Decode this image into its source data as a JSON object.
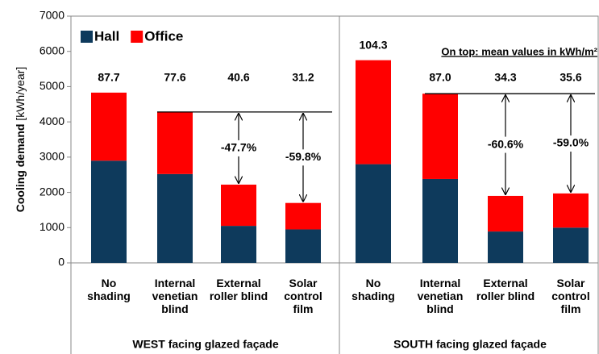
{
  "chart_data": {
    "type": "stacked_bar",
    "ylabel": "Cooling demand",
    "ylabel_unit": "[kWh/year]",
    "categories": [
      "No\nshading",
      "Internal\nvenetian\nblind",
      "External\nroller blind",
      "Solar\ncontrol\nfilm",
      "No\nshading",
      "Internal\nvenetian\nblind",
      "External\nroller blind",
      "Solar\ncontrol\nfilm"
    ],
    "groups": [
      "WEST facing glazed façade",
      "SOUTH facing glazed façade"
    ],
    "series": [
      {
        "name": "Hall",
        "color": "#0e3a5c",
        "values": [
          2900,
          2520,
          1050,
          950,
          2800,
          2380,
          890,
          1000
        ]
      },
      {
        "name": "Office",
        "color": "#ff0000",
        "values": [
          1930,
          1760,
          1170,
          750,
          2950,
          2420,
          1010,
          970
        ]
      }
    ],
    "annotations": {
      "note": "On top: mean values in kWh/m²",
      "mean_values": [
        "87.7",
        "77.6",
        "40.6",
        "31.2",
        "104.3",
        "87.0",
        "34.3",
        "35.6"
      ],
      "reductions": [
        null,
        null,
        "-47.7%",
        "-59.8%",
        null,
        null,
        "-60.6%",
        "-59.0%"
      ]
    },
    "ylim": [
      0,
      7000
    ],
    "yticks": [
      0,
      1000,
      2000,
      3000,
      4000,
      5000,
      6000,
      7000
    ]
  }
}
